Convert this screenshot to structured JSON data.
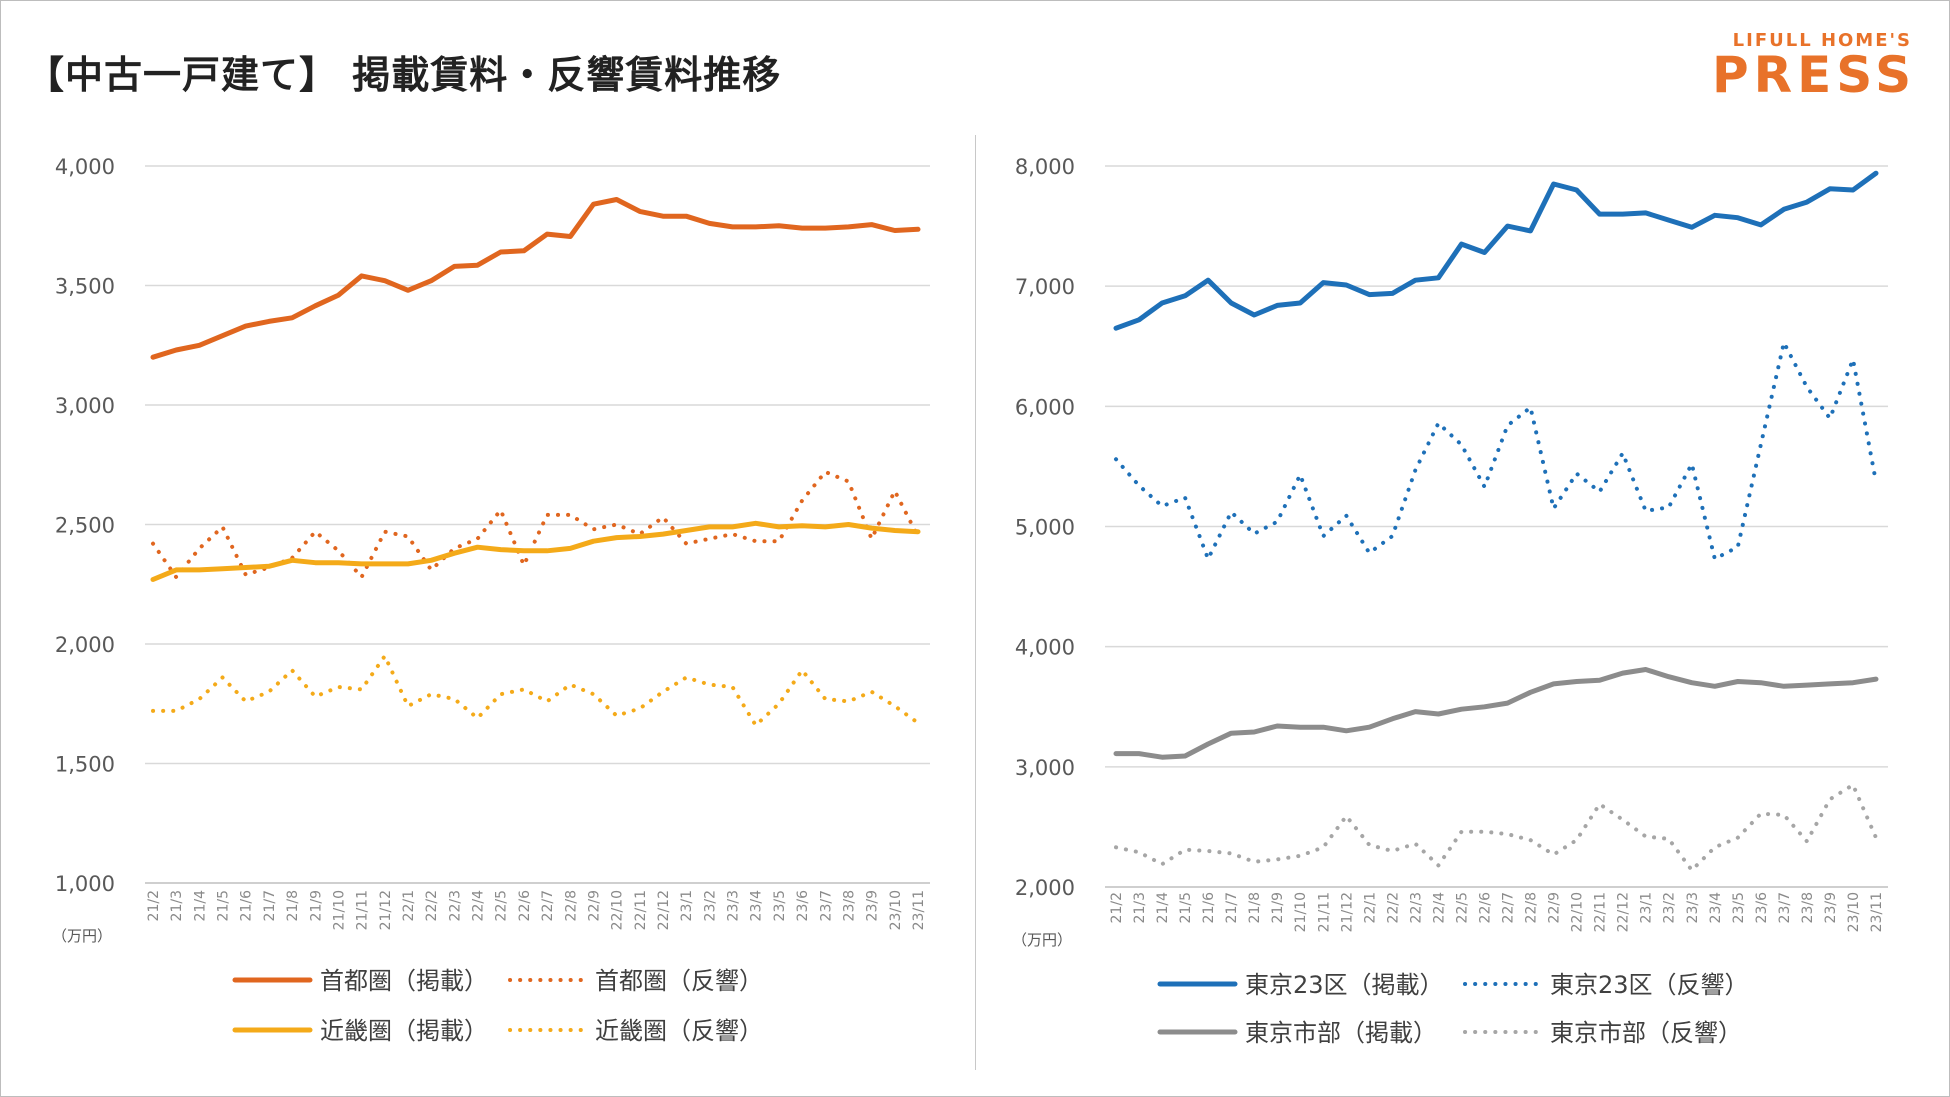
{
  "title": "【中古一戸建て】 掲載賃料・反響賃料推移",
  "logo": {
    "line1": "LIFULL HOME'S",
    "line2": "PRESS"
  },
  "chart_data": [
    {
      "type": "line",
      "unit_label": "（万円）",
      "ylim": [
        1000,
        4000
      ],
      "yticks": [
        1000,
        1500,
        2000,
        2500,
        3000,
        3500,
        4000
      ],
      "ytick_labels": [
        "1,000",
        "1,500",
        "2,000",
        "2,500",
        "3,000",
        "3,500",
        "4,000"
      ],
      "categories": [
        "21/2",
        "21/3",
        "21/4",
        "21/5",
        "21/6",
        "21/7",
        "21/8",
        "21/9",
        "21/10",
        "21/11",
        "21/12",
        "22/1",
        "22/2",
        "22/3",
        "22/4",
        "22/5",
        "22/6",
        "22/7",
        "22/8",
        "22/9",
        "22/10",
        "22/11",
        "22/12",
        "23/1",
        "23/2",
        "23/3",
        "23/4",
        "23/5",
        "23/6",
        "23/7",
        "23/8",
        "23/9",
        "23/10",
        "23/11"
      ],
      "legend_position": "bottom",
      "series": [
        {
          "name": "首都圏（掲載）",
          "color": "#e0661f",
          "style": "solid",
          "values": [
            3200,
            3230,
            3250,
            3290,
            3330,
            3350,
            3365,
            3415,
            3460,
            3540,
            3520,
            3480,
            3520,
            3580,
            3585,
            3640,
            3645,
            3715,
            3705,
            3840,
            3860,
            3810,
            3790,
            3790,
            3760,
            3745,
            3745,
            3750,
            3740,
            3740,
            3745,
            3755,
            3730,
            3735
          ]
        },
        {
          "name": "首都圏（反響）",
          "color": "#e0661f",
          "style": "dotted",
          "values": [
            2420,
            2280,
            2400,
            2490,
            2290,
            2320,
            2360,
            2470,
            2390,
            2280,
            2470,
            2450,
            2310,
            2400,
            2440,
            2560,
            2330,
            2540,
            2540,
            2480,
            2500,
            2460,
            2530,
            2420,
            2440,
            2460,
            2430,
            2430,
            2600,
            2720,
            2680,
            2440,
            2640,
            2450
          ]
        },
        {
          "name": "近畿圏（掲載）",
          "color": "#f4aa19",
          "style": "solid",
          "values": [
            2270,
            2310,
            2310,
            2315,
            2320,
            2325,
            2350,
            2340,
            2340,
            2335,
            2335,
            2335,
            2350,
            2380,
            2405,
            2395,
            2390,
            2390,
            2400,
            2430,
            2445,
            2450,
            2460,
            2475,
            2490,
            2490,
            2505,
            2490,
            2495,
            2490,
            2500,
            2485,
            2475,
            2470
          ]
        },
        {
          "name": "近畿圏（反響）",
          "color": "#f4aa19",
          "style": "dotted",
          "values": [
            1720,
            1720,
            1770,
            1860,
            1760,
            1800,
            1890,
            1780,
            1820,
            1810,
            1950,
            1740,
            1790,
            1770,
            1690,
            1790,
            1810,
            1760,
            1830,
            1790,
            1700,
            1730,
            1800,
            1860,
            1830,
            1820,
            1660,
            1750,
            1890,
            1770,
            1760,
            1800,
            1740,
            1670
          ]
        }
      ]
    },
    {
      "type": "line",
      "unit_label": "（万円）",
      "ylim": [
        2000,
        8000
      ],
      "yticks": [
        2000,
        3000,
        4000,
        5000,
        6000,
        7000,
        8000
      ],
      "ytick_labels": [
        "2,000",
        "3,000",
        "4,000",
        "5,000",
        "6,000",
        "7,000",
        "8,000"
      ],
      "categories": [
        "21/2",
        "21/3",
        "21/4",
        "21/5",
        "21/6",
        "21/7",
        "21/8",
        "21/9",
        "21/10",
        "21/11",
        "21/12",
        "22/1",
        "22/2",
        "22/3",
        "22/4",
        "22/5",
        "22/6",
        "22/7",
        "22/8",
        "22/9",
        "22/10",
        "22/11",
        "22/12",
        "23/1",
        "23/2",
        "23/3",
        "23/4",
        "23/5",
        "23/6",
        "23/7",
        "23/8",
        "23/9",
        "23/10",
        "23/11"
      ],
      "legend_position": "bottom",
      "series": [
        {
          "name": "東京23区（掲載）",
          "color": "#1e70b8",
          "style": "solid",
          "values": [
            6650,
            6720,
            6860,
            6920,
            7050,
            6860,
            6760,
            6840,
            6860,
            7030,
            7010,
            6930,
            6940,
            7050,
            7070,
            7350,
            7280,
            7500,
            7460,
            7850,
            7800,
            7600,
            7600,
            7610,
            7550,
            7490,
            7590,
            7570,
            7510,
            7640,
            7700,
            7810,
            7800,
            7940
          ]
        },
        {
          "name": "東京23区（反響）",
          "color": "#1e70b8",
          "style": "dotted",
          "values": [
            5560,
            5340,
            5170,
            5240,
            4730,
            5120,
            4940,
            5040,
            5430,
            4920,
            5090,
            4780,
            4920,
            5470,
            5860,
            5680,
            5330,
            5840,
            5990,
            5150,
            5440,
            5290,
            5610,
            5130,
            5160,
            5520,
            4730,
            4830,
            5680,
            6530,
            6160,
            5900,
            6390,
            5370
          ]
        },
        {
          "name": "東京市部（掲載）",
          "color": "#8c8c8c",
          "style": "solid",
          "values": [
            3110,
            3110,
            3080,
            3090,
            3190,
            3280,
            3290,
            3340,
            3330,
            3330,
            3300,
            3330,
            3400,
            3460,
            3440,
            3480,
            3500,
            3530,
            3620,
            3690,
            3710,
            3720,
            3780,
            3810,
            3750,
            3700,
            3670,
            3710,
            3700,
            3670,
            3680,
            3690,
            3700,
            3730
          ]
        },
        {
          "name": "東京市部（反響）",
          "color": "#a6a6a6",
          "style": "dotted",
          "values": [
            2330,
            2290,
            2190,
            2310,
            2300,
            2280,
            2210,
            2230,
            2260,
            2330,
            2590,
            2350,
            2300,
            2360,
            2180,
            2460,
            2460,
            2440,
            2390,
            2270,
            2390,
            2690,
            2560,
            2420,
            2400,
            2140,
            2330,
            2410,
            2610,
            2600,
            2380,
            2730,
            2850,
            2410
          ]
        }
      ]
    }
  ]
}
